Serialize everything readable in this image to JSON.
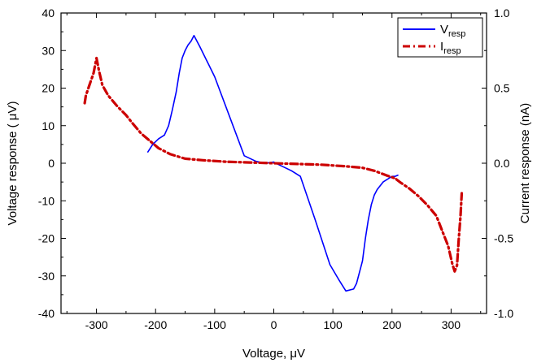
{
  "chart_data": {
    "type": "line",
    "title": "",
    "xlabel": "Voltage, μV",
    "ylabel": "Voltage response ( μV)",
    "y2label": "Current response (nA)",
    "xlim": [
      -360,
      360
    ],
    "ylim": [
      -40,
      40
    ],
    "y2lim": [
      -1.0,
      1.0
    ],
    "x_ticks": [
      -300,
      -200,
      -100,
      0,
      100,
      200,
      300
    ],
    "x_tick_labels": [
      "-300",
      "-200",
      "-100",
      "0",
      "100",
      "200",
      "300"
    ],
    "y_ticks": [
      -40,
      -30,
      -20,
      -10,
      0,
      10,
      20,
      30,
      40
    ],
    "y_tick_labels": [
      "-40",
      "-30",
      "-20",
      "-10",
      "0",
      "10",
      "20",
      "30",
      "40"
    ],
    "y2_ticks": [
      -1.0,
      -0.5,
      0.0,
      0.5,
      1.0
    ],
    "y2_tick_labels": [
      "-1.0",
      "-0.5",
      "0.0",
      "0.5",
      "1.0"
    ],
    "grid": false,
    "legend_position": "top-right",
    "series": [
      {
        "name": "V",
        "name_sub": "resp",
        "axis": "left",
        "color": "#0000ff",
        "style": "solid",
        "x": [
          -213,
          -205,
          -195,
          -185,
          -178,
          -172,
          -165,
          -160,
          -155,
          -150,
          -145,
          -140,
          -135,
          -125,
          -100,
          -50,
          -30,
          -15,
          0,
          10,
          30,
          45,
          70,
          95,
          110,
          122,
          135,
          140,
          150,
          155,
          160,
          165,
          170,
          175,
          185,
          195,
          200,
          205,
          210
        ],
        "y": [
          3,
          5,
          6.5,
          7.5,
          10,
          14,
          19,
          24,
          28,
          30,
          31.5,
          32.5,
          34,
          31,
          23,
          2,
          0.5,
          0,
          0.3,
          -0.5,
          -2,
          -3.5,
          -15,
          -27,
          -31,
          -34,
          -33.5,
          -32,
          -26,
          -20,
          -15,
          -11,
          -8.5,
          -7,
          -5,
          -4,
          -3.5,
          -3.5,
          -3.2
        ]
      },
      {
        "name": "I",
        "name_sub": "resp",
        "axis": "right",
        "color": "#cc0000",
        "style": "dash-dot",
        "x": [
          -320,
          -318,
          -312,
          -305,
          -300,
          -296,
          -290,
          -280,
          -265,
          -250,
          -240,
          -225,
          -210,
          -195,
          -175,
          -150,
          -120,
          -80,
          -40,
          0,
          40,
          80,
          120,
          150,
          170,
          190,
          205,
          215,
          230,
          245,
          260,
          275,
          285,
          295,
          302,
          306,
          310,
          313,
          316,
          318
        ],
        "y": [
          0.4,
          0.45,
          0.52,
          0.6,
          0.7,
          0.62,
          0.52,
          0.45,
          0.38,
          0.32,
          0.27,
          0.2,
          0.15,
          0.1,
          0.06,
          0.03,
          0.02,
          0.01,
          0.005,
          0.0,
          -0.005,
          -0.01,
          -0.02,
          -0.03,
          -0.05,
          -0.08,
          -0.1,
          -0.13,
          -0.17,
          -0.22,
          -0.28,
          -0.35,
          -0.45,
          -0.55,
          -0.67,
          -0.72,
          -0.68,
          -0.5,
          -0.35,
          -0.2
        ]
      }
    ]
  }
}
